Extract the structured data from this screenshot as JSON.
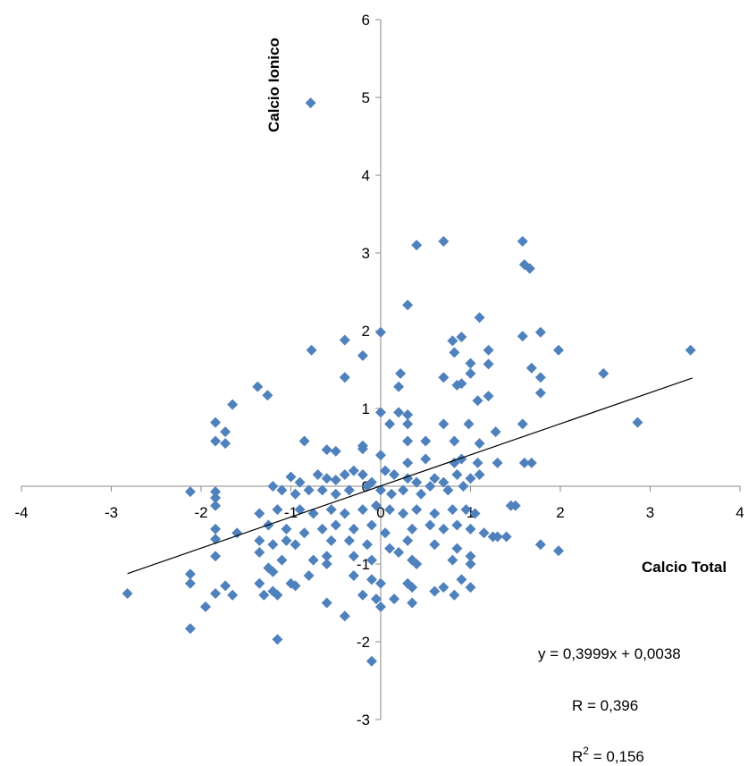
{
  "chart_data": {
    "type": "scatter",
    "title": "",
    "xlabel": "Calcio Total",
    "ylabel": "Calcio Ionico",
    "xlim": [
      -4,
      4
    ],
    "ylim": [
      -3,
      6
    ],
    "x_ticks": [
      "-4",
      "-3",
      "-2",
      "-1",
      "0",
      "1",
      "2",
      "3",
      "4"
    ],
    "y_ticks": [
      "-3",
      "-2",
      "-1",
      "0",
      "1",
      "2",
      "3",
      "4",
      "5",
      "6"
    ],
    "grid": false,
    "legend": "none",
    "marker_color": "#4F81BD",
    "trendline": {
      "slope": 0.3999,
      "intercept": 0.0038,
      "x_range": [
        -2.82,
        3.47
      ],
      "color": "#000000"
    },
    "annotations": {
      "equation": "y = 0,3999x + 0,0038",
      "r": "R =  0,396",
      "r2_prefix": "R",
      "r2_sup": "2",
      "r2_suffix": " = 0,156"
    },
    "points": [
      [
        -0.78,
        4.93
      ],
      [
        0.4,
        3.1
      ],
      [
        0.7,
        3.15
      ],
      [
        1.58,
        3.15
      ],
      [
        1.6,
        2.85
      ],
      [
        1.66,
        2.8
      ],
      [
        0.3,
        2.33
      ],
      [
        1.1,
        2.17
      ],
      [
        0.0,
        1.98
      ],
      [
        0.8,
        1.87
      ],
      [
        0.9,
        1.92
      ],
      [
        1.58,
        1.93
      ],
      [
        1.78,
        1.98
      ],
      [
        1.98,
        1.75
      ],
      [
        1.2,
        1.75
      ],
      [
        3.45,
        1.75
      ],
      [
        -0.77,
        1.75
      ],
      [
        -0.4,
        1.88
      ],
      [
        -0.2,
        1.68
      ],
      [
        0.82,
        1.72
      ],
      [
        1.0,
        1.58
      ],
      [
        1.2,
        1.57
      ],
      [
        1.68,
        1.52
      ],
      [
        0.22,
        1.45
      ],
      [
        0.7,
        1.4
      ],
      [
        0.85,
        1.3
      ],
      [
        1.0,
        1.45
      ],
      [
        1.78,
        1.4
      ],
      [
        2.48,
        1.45
      ],
      [
        -0.4,
        1.4
      ],
      [
        -1.37,
        1.28
      ],
      [
        -1.26,
        1.17
      ],
      [
        0.2,
        1.28
      ],
      [
        0.9,
        1.32
      ],
      [
        1.2,
        1.16
      ],
      [
        1.08,
        1.1
      ],
      [
        1.78,
        1.2
      ],
      [
        -1.65,
        1.05
      ],
      [
        0.0,
        0.95
      ],
      [
        0.2,
        0.95
      ],
      [
        0.3,
        0.92
      ],
      [
        0.3,
        0.8
      ],
      [
        0.1,
        0.8
      ],
      [
        0.7,
        0.8
      ],
      [
        0.98,
        0.8
      ],
      [
        1.58,
        0.8
      ],
      [
        2.86,
        0.82
      ],
      [
        -1.84,
        0.82
      ],
      [
        -1.73,
        0.7
      ],
      [
        -1.84,
        0.58
      ],
      [
        -1.73,
        0.55
      ],
      [
        -0.85,
        0.58
      ],
      [
        0.3,
        0.58
      ],
      [
        0.5,
        0.58
      ],
      [
        0.82,
        0.58
      ],
      [
        1.1,
        0.55
      ],
      [
        1.28,
        0.7
      ],
      [
        -0.6,
        0.47
      ],
      [
        -0.5,
        0.45
      ],
      [
        -0.2,
        0.48
      ],
      [
        -0.2,
        0.52
      ],
      [
        0.0,
        0.4
      ],
      [
        0.3,
        0.3
      ],
      [
        0.5,
        0.35
      ],
      [
        0.82,
        0.3
      ],
      [
        0.9,
        0.35
      ],
      [
        1.08,
        0.3
      ],
      [
        1.3,
        0.3
      ],
      [
        1.6,
        0.3
      ],
      [
        1.68,
        0.3
      ],
      [
        -1.0,
        0.12
      ],
      [
        -0.9,
        0.05
      ],
      [
        -0.7,
        0.15
      ],
      [
        -0.6,
        0.1
      ],
      [
        -0.5,
        0.08
      ],
      [
        -0.4,
        0.15
      ],
      [
        -0.3,
        0.2
      ],
      [
        -0.2,
        0.15
      ],
      [
        -0.1,
        0.05
      ],
      [
        0.05,
        0.2
      ],
      [
        0.15,
        0.15
      ],
      [
        0.3,
        0.1
      ],
      [
        0.4,
        0.05
      ],
      [
        0.6,
        0.1
      ],
      [
        0.7,
        0.05
      ],
      [
        0.85,
        0.15
      ],
      [
        1.0,
        0.1
      ],
      [
        1.1,
        0.15
      ],
      [
        -1.2,
        0.0
      ],
      [
        -1.1,
        -0.05
      ],
      [
        -0.95,
        -0.1
      ],
      [
        -0.8,
        -0.05
      ],
      [
        -0.65,
        -0.05
      ],
      [
        -0.5,
        -0.1
      ],
      [
        -0.35,
        -0.05
      ],
      [
        -0.15,
        0.0
      ],
      [
        0.0,
        -0.05
      ],
      [
        0.12,
        -0.1
      ],
      [
        0.25,
        -0.05
      ],
      [
        0.45,
        -0.1
      ],
      [
        0.55,
        0.0
      ],
      [
        0.75,
        -0.05
      ],
      [
        0.92,
        0.0
      ],
      [
        1.45,
        -0.25
      ],
      [
        1.5,
        -0.25
      ],
      [
        -2.12,
        -0.07
      ],
      [
        -1.84,
        -0.07
      ],
      [
        -1.84,
        -0.15
      ],
      [
        -1.84,
        -0.25
      ],
      [
        -1.35,
        -0.35
      ],
      [
        -1.15,
        -0.3
      ],
      [
        -0.9,
        -0.3
      ],
      [
        -0.75,
        -0.35
      ],
      [
        -0.55,
        -0.3
      ],
      [
        -0.4,
        -0.35
      ],
      [
        -0.2,
        -0.3
      ],
      [
        -0.05,
        -0.25
      ],
      [
        0.1,
        -0.3
      ],
      [
        0.25,
        -0.35
      ],
      [
        0.4,
        -0.3
      ],
      [
        0.6,
        -0.35
      ],
      [
        0.8,
        -0.3
      ],
      [
        0.95,
        -0.3
      ],
      [
        1.05,
        -0.35
      ],
      [
        -1.84,
        -0.55
      ],
      [
        -1.6,
        -0.6
      ],
      [
        -1.25,
        -0.5
      ],
      [
        -1.05,
        -0.55
      ],
      [
        -0.85,
        -0.6
      ],
      [
        -0.65,
        -0.55
      ],
      [
        -0.5,
        -0.5
      ],
      [
        -0.3,
        -0.55
      ],
      [
        -0.1,
        -0.5
      ],
      [
        0.05,
        -0.6
      ],
      [
        0.35,
        -0.55
      ],
      [
        0.55,
        -0.5
      ],
      [
        0.7,
        -0.55
      ],
      [
        0.85,
        -0.5
      ],
      [
        1.0,
        -0.55
      ],
      [
        1.15,
        -0.6
      ],
      [
        1.25,
        -0.65
      ],
      [
        1.3,
        -0.65
      ],
      [
        1.4,
        -0.65
      ],
      [
        -1.84,
        -0.68
      ],
      [
        -1.35,
        -0.7
      ],
      [
        -1.2,
        -0.75
      ],
      [
        -1.05,
        -0.7
      ],
      [
        -0.95,
        -0.75
      ],
      [
        -0.55,
        -0.7
      ],
      [
        -0.35,
        -0.7
      ],
      [
        -0.15,
        -0.75
      ],
      [
        0.1,
        -0.8
      ],
      [
        0.3,
        -0.7
      ],
      [
        0.6,
        -0.75
      ],
      [
        0.85,
        -0.8
      ],
      [
        1.78,
        -0.75
      ],
      [
        1.98,
        -0.83
      ],
      [
        -1.84,
        -0.9
      ],
      [
        -1.35,
        -0.85
      ],
      [
        -1.1,
        -0.95
      ],
      [
        -0.75,
        -0.95
      ],
      [
        -0.6,
        -0.9
      ],
      [
        -0.3,
        -0.9
      ],
      [
        -0.1,
        -0.95
      ],
      [
        0.2,
        -0.85
      ],
      [
        0.35,
        -0.95
      ],
      [
        0.4,
        -1.0
      ],
      [
        0.8,
        -0.95
      ],
      [
        1.0,
        -0.9
      ],
      [
        1.0,
        -1.0
      ],
      [
        -2.12,
        -1.13
      ],
      [
        -1.84,
        -1.38
      ],
      [
        -1.73,
        -1.28
      ],
      [
        -1.65,
        -1.4
      ],
      [
        -1.35,
        -1.25
      ],
      [
        -1.25,
        -1.05
      ],
      [
        -1.2,
        -1.1
      ],
      [
        -1.15,
        -1.4
      ],
      [
        -1.0,
        -1.25
      ],
      [
        -0.95,
        -1.28
      ],
      [
        -0.8,
        -1.15
      ],
      [
        -0.6,
        -1.0
      ],
      [
        -0.3,
        -1.15
      ],
      [
        -0.1,
        -1.2
      ],
      [
        0.0,
        -1.25
      ],
      [
        0.3,
        -1.25
      ],
      [
        0.35,
        -1.3
      ],
      [
        0.6,
        -1.35
      ],
      [
        0.7,
        -1.3
      ],
      [
        0.82,
        -1.4
      ],
      [
        0.9,
        -1.2
      ],
      [
        1.0,
        -1.3
      ],
      [
        -2.82,
        -1.38
      ],
      [
        -2.12,
        -1.25
      ],
      [
        -1.95,
        -1.55
      ],
      [
        -1.3,
        -1.4
      ],
      [
        -1.2,
        -1.35
      ],
      [
        -0.6,
        -1.5
      ],
      [
        -0.2,
        -1.4
      ],
      [
        -0.05,
        -1.45
      ],
      [
        0.0,
        -1.55
      ],
      [
        0.15,
        -1.45
      ],
      [
        0.35,
        -1.5
      ],
      [
        -2.12,
        -1.83
      ],
      [
        -0.4,
        -1.67
      ],
      [
        -1.15,
        -1.97
      ],
      [
        -0.1,
        -2.25
      ]
    ]
  }
}
